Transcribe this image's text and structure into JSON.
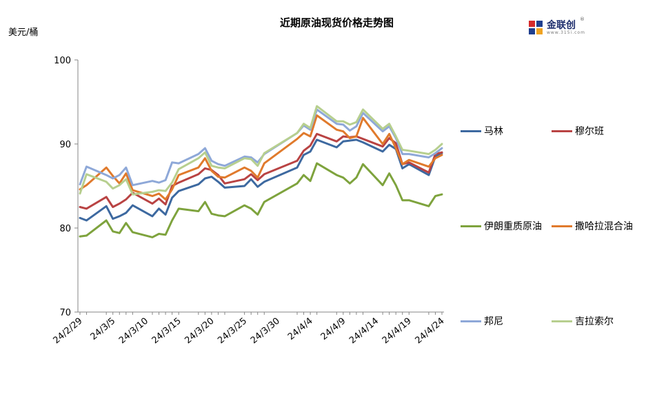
{
  "header": {
    "title": "近期原油现货价格走势图",
    "unit": "美元/桶",
    "logo_text": "金联创",
    "logo_sub": "www.315i.com",
    "logo_reg": "®"
  },
  "chart_data": {
    "type": "line",
    "title": "近期原油现货价格走势图",
    "ylabel": "美元/桶",
    "ylim": [
      70,
      100
    ],
    "yticks": [
      "70",
      "80",
      "90",
      "100"
    ],
    "xtick_labels": [
      "24/2/29",
      "24/3/5",
      "24/3/10",
      "24/3/15",
      "24/3/20",
      "24/3/25",
      "24/3/30",
      "24/4/4",
      "24/4/9",
      "24/4/14",
      "24/4/19",
      "24/4/24"
    ],
    "xtick_dates": [
      "2024-02-29",
      "2024-03-05",
      "2024-03-10",
      "2024-03-15",
      "2024-03-20",
      "2024-03-25",
      "2024-03-30",
      "2024-04-04",
      "2024-04-09",
      "2024-04-14",
      "2024-04-19",
      "2024-04-24"
    ],
    "x": [
      "2024-02-29",
      "2024-03-01",
      "2024-03-04",
      "2024-03-05",
      "2024-03-06",
      "2024-03-07",
      "2024-03-08",
      "2024-03-11",
      "2024-03-12",
      "2024-03-13",
      "2024-03-14",
      "2024-03-15",
      "2024-03-18",
      "2024-03-19",
      "2024-03-20",
      "2024-03-21",
      "2024-03-22",
      "2024-03-25",
      "2024-03-26",
      "2024-03-27",
      "2024-03-28",
      "2024-04-02",
      "2024-04-03",
      "2024-04-04",
      "2024-04-05",
      "2024-04-08",
      "2024-04-09",
      "2024-04-10",
      "2024-04-11",
      "2024-04-12",
      "2024-04-15",
      "2024-04-16",
      "2024-04-17",
      "2024-04-18",
      "2024-04-19",
      "2024-04-22",
      "2024-04-23",
      "2024-04-24"
    ],
    "series": [
      {
        "name": "马林",
        "color": "#3d69a0",
        "values": [
          81.2,
          80.9,
          82.6,
          81.1,
          81.4,
          81.8,
          82.7,
          81.4,
          82.3,
          81.6,
          83.6,
          84.4,
          85.2,
          85.9,
          86.1,
          85.5,
          84.8,
          85.0,
          85.8,
          84.9,
          85.5,
          87.2,
          88.7,
          89.1,
          90.5,
          89.6,
          90.3,
          90.4,
          90.5,
          90.2,
          89.1,
          89.9,
          89.4,
          87.1,
          87.6,
          86.3,
          88.5,
          88.9
        ]
      },
      {
        "name": "穆尔班",
        "color": "#b94343",
        "values": [
          82.5,
          82.3,
          83.7,
          82.5,
          82.9,
          83.4,
          84.2,
          82.9,
          83.5,
          82.8,
          85.0,
          85.4,
          86.4,
          87.1,
          86.9,
          86.3,
          85.3,
          85.8,
          86.4,
          85.7,
          86.4,
          88.0,
          89.2,
          89.8,
          91.2,
          90.3,
          90.9,
          90.8,
          90.9,
          90.6,
          89.7,
          90.7,
          90.1,
          87.6,
          87.8,
          86.6,
          88.8,
          89.0
        ]
      },
      {
        "name": "伊朗重质原油",
        "color": "#7ea33d",
        "values": [
          79.0,
          79.1,
          80.9,
          79.6,
          79.4,
          80.6,
          79.5,
          78.9,
          79.3,
          79.2,
          80.9,
          82.3,
          82.0,
          83.1,
          81.7,
          81.5,
          81.4,
          82.7,
          82.3,
          81.6,
          83.1,
          85.3,
          86.3,
          85.6,
          87.7,
          86.3,
          86.0,
          85.3,
          86.0,
          87.6,
          85.1,
          86.5,
          85.1,
          83.3,
          83.3,
          82.6,
          83.8,
          84.0
        ]
      },
      {
        "name": "撒哈拉混合油",
        "color": "#e07a2c",
        "values": [
          84.6,
          85.1,
          87.2,
          86.2,
          85.3,
          86.5,
          84.5,
          83.8,
          84.1,
          83.4,
          84.6,
          86.3,
          87.2,
          88.3,
          86.8,
          86.1,
          86.0,
          87.2,
          86.8,
          86.0,
          87.7,
          90.6,
          91.3,
          90.9,
          93.4,
          91.7,
          91.5,
          90.7,
          90.9,
          93.1,
          90.0,
          91.2,
          89.5,
          87.6,
          88.1,
          87.3,
          88.3,
          88.7
        ]
      },
      {
        "name": "邦尼",
        "color": "#8ea8d8",
        "values": [
          85.2,
          87.3,
          86.3,
          85.9,
          86.3,
          87.2,
          85.1,
          85.6,
          85.4,
          85.7,
          87.8,
          87.7,
          88.8,
          89.5,
          88.0,
          87.6,
          87.4,
          88.5,
          88.4,
          87.8,
          88.8,
          91.3,
          92.2,
          91.7,
          94.1,
          92.4,
          92.3,
          91.6,
          92.1,
          93.7,
          91.5,
          92.1,
          90.7,
          88.8,
          88.8,
          88.4,
          88.9,
          89.5
        ]
      },
      {
        "name": "吉拉索尔",
        "color": "#b7cf8f",
        "values": [
          84.1,
          86.4,
          85.5,
          84.7,
          85.1,
          85.8,
          84.0,
          84.3,
          84.5,
          84.4,
          85.4,
          87.0,
          88.3,
          89.0,
          87.4,
          87.2,
          87.1,
          88.3,
          88.2,
          87.4,
          88.9,
          91.3,
          92.4,
          91.9,
          94.5,
          92.7,
          92.7,
          92.3,
          92.6,
          94.1,
          91.8,
          92.4,
          90.9,
          89.3,
          89.2,
          88.8,
          89.3,
          90.0
        ]
      }
    ],
    "grid": false,
    "legend_position": "right"
  }
}
